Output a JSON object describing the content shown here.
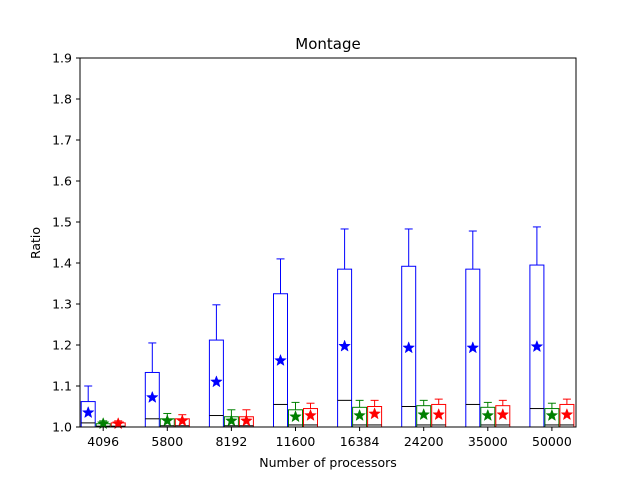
{
  "chart_data": {
    "type": "box",
    "title": "Montage",
    "xlabel": "Number of processors",
    "ylabel": "Ratio",
    "ylim": [
      1.0,
      1.9
    ],
    "yticks": [
      "1.0",
      "1.1",
      "1.2",
      "1.3",
      "1.4",
      "1.5",
      "1.6",
      "1.7",
      "1.8",
      "1.9"
    ],
    "categories": [
      "4096",
      "5800",
      "8192",
      "11600",
      "16384",
      "24200",
      "35000",
      "50000"
    ],
    "grid": false,
    "series": [
      {
        "color": "#0000ff",
        "boxes": [
          {
            "q1": 1.0,
            "median": 1.01,
            "q3": 1.062,
            "whisker_high": 1.1,
            "mean": 1.035
          },
          {
            "q1": 1.0,
            "median": 1.02,
            "q3": 1.133,
            "whisker_high": 1.205,
            "mean": 1.072
          },
          {
            "q1": 1.0,
            "median": 1.028,
            "q3": 1.212,
            "whisker_high": 1.298,
            "mean": 1.11
          },
          {
            "q1": 1.0,
            "median": 1.055,
            "q3": 1.325,
            "whisker_high": 1.41,
            "mean": 1.162
          },
          {
            "q1": 1.0,
            "median": 1.065,
            "q3": 1.385,
            "whisker_high": 1.483,
            "mean": 1.197
          },
          {
            "q1": 1.0,
            "median": 1.05,
            "q3": 1.392,
            "whisker_high": 1.483,
            "mean": 1.193
          },
          {
            "q1": 1.0,
            "median": 1.055,
            "q3": 1.385,
            "whisker_high": 1.478,
            "mean": 1.193
          },
          {
            "q1": 1.0,
            "median": 1.045,
            "q3": 1.395,
            "whisker_high": 1.488,
            "mean": 1.196
          }
        ]
      },
      {
        "color": "#008000",
        "boxes": [
          {
            "q1": 1.0,
            "median": 1.002,
            "q3": 1.008,
            "whisker_high": 1.015,
            "mean": 1.008
          },
          {
            "q1": 1.0,
            "median": 1.003,
            "q3": 1.02,
            "whisker_high": 1.033,
            "mean": 1.015
          },
          {
            "q1": 1.0,
            "median": 1.003,
            "q3": 1.025,
            "whisker_high": 1.042,
            "mean": 1.015
          },
          {
            "q1": 1.0,
            "median": 1.005,
            "q3": 1.042,
            "whisker_high": 1.06,
            "mean": 1.025
          },
          {
            "q1": 1.0,
            "median": 1.005,
            "q3": 1.048,
            "whisker_high": 1.065,
            "mean": 1.028
          },
          {
            "q1": 1.0,
            "median": 1.005,
            "q3": 1.052,
            "whisker_high": 1.065,
            "mean": 1.03
          },
          {
            "q1": 1.0,
            "median": 1.005,
            "q3": 1.048,
            "whisker_high": 1.06,
            "mean": 1.028
          },
          {
            "q1": 1.0,
            "median": 1.005,
            "q3": 1.045,
            "whisker_high": 1.058,
            "mean": 1.028
          }
        ]
      },
      {
        "color": "#ff0000",
        "boxes": [
          {
            "q1": 1.0,
            "median": 1.002,
            "q3": 1.01,
            "whisker_high": 1.015,
            "mean": 1.008
          },
          {
            "q1": 1.0,
            "median": 1.003,
            "q3": 1.02,
            "whisker_high": 1.03,
            "mean": 1.015
          },
          {
            "q1": 1.0,
            "median": 1.003,
            "q3": 1.025,
            "whisker_high": 1.042,
            "mean": 1.015
          },
          {
            "q1": 1.0,
            "median": 1.005,
            "q3": 1.045,
            "whisker_high": 1.058,
            "mean": 1.028
          },
          {
            "q1": 1.0,
            "median": 1.005,
            "q3": 1.05,
            "whisker_high": 1.065,
            "mean": 1.032
          },
          {
            "q1": 1.0,
            "median": 1.005,
            "q3": 1.055,
            "whisker_high": 1.068,
            "mean": 1.03
          },
          {
            "q1": 1.0,
            "median": 1.005,
            "q3": 1.052,
            "whisker_high": 1.065,
            "mean": 1.03
          },
          {
            "q1": 1.0,
            "median": 1.005,
            "q3": 1.055,
            "whisker_high": 1.068,
            "mean": 1.03
          }
        ]
      }
    ]
  }
}
